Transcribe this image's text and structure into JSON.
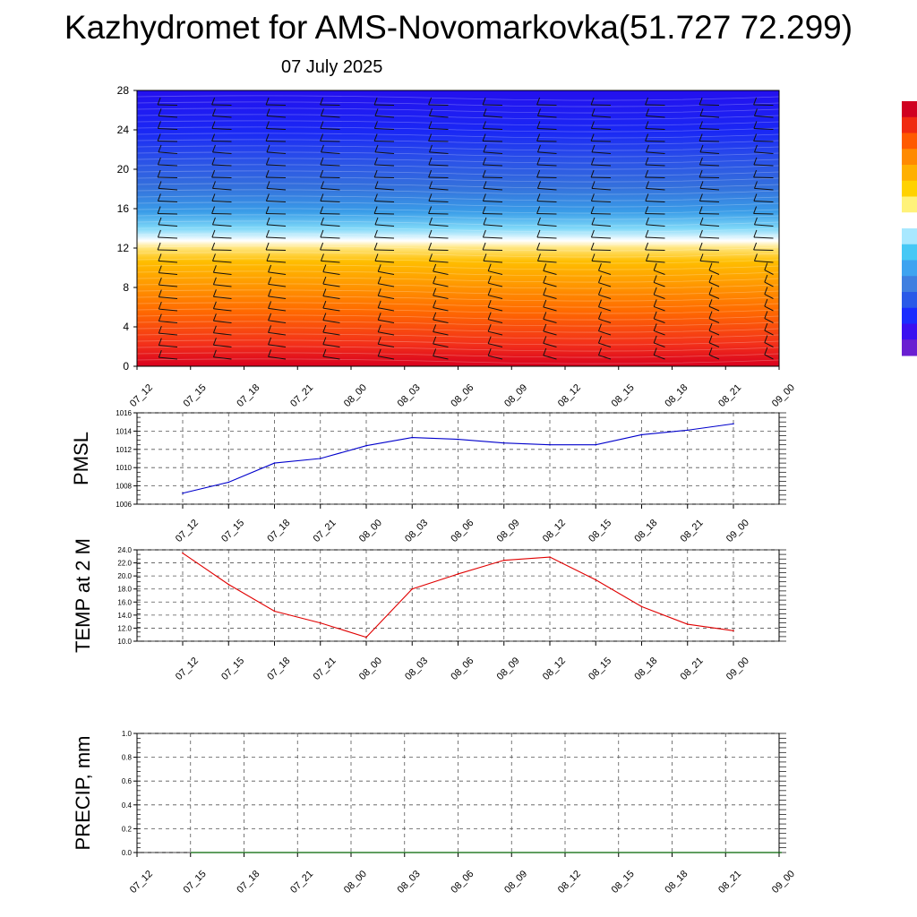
{
  "header": {
    "title": "Kazhydromet for AMS-Novomarkovka(51.727 72.299)",
    "date": "07 July 2025"
  },
  "chart_data": [
    {
      "type": "heatmap",
      "title": "Kazhydromet for AMS-Novomarkovka(51.727 72.299)",
      "subtitle": "07 July 2025",
      "x_ticks": [
        "07_12",
        "07_15",
        "07_18",
        "07_21",
        "08_00",
        "08_03",
        "08_06",
        "08_09",
        "08_12",
        "08_15",
        "08_18",
        "08_21",
        "09_00"
      ],
      "y_ticks": [
        0,
        4,
        8,
        12,
        16,
        20,
        24,
        28
      ],
      "ylim": [
        0,
        28
      ],
      "colorbar": [
        "#6a1fd1",
        "#3a10f0",
        "#1a2cff",
        "#2a5ae8",
        "#3f7fe0",
        "#3ea3f0",
        "#46c8f5",
        "#a8e8ff",
        "#ffffff",
        "#fff27a",
        "#ffd200",
        "#ffb000",
        "#ff8a00",
        "#ff5a00",
        "#f02a10",
        "#d00020"
      ],
      "overlay": "wind barbs"
    },
    {
      "type": "line",
      "ylabel": "PMSL",
      "x_ticks": [
        "07_12",
        "07_15",
        "07_18",
        "07_21",
        "08_00",
        "08_03",
        "08_06",
        "08_09",
        "08_12",
        "08_15",
        "08_18",
        "08_21",
        "09_00"
      ],
      "y_ticks": [
        "1006",
        "1008",
        "1010",
        "1012",
        "1014",
        "1016"
      ],
      "ylim": [
        1006,
        1016
      ],
      "color": "#0000cc",
      "values": [
        1007.2,
        1008.4,
        1010.5,
        1011.0,
        1012.4,
        1013.3,
        1013.1,
        1012.7,
        1012.5,
        1012.5,
        1013.6,
        1014.1,
        1014.8
      ]
    },
    {
      "type": "line",
      "ylabel": "TEMP at 2 M",
      "x_ticks": [
        "07_12",
        "07_15",
        "07_18",
        "07_21",
        "08_00",
        "08_03",
        "08_06",
        "08_09",
        "08_12",
        "08_15",
        "08_18",
        "08_21",
        "09_00"
      ],
      "y_ticks": [
        "10.0",
        "12.0",
        "14.0",
        "16.0",
        "18.0",
        "20.0",
        "22.0",
        "24.0"
      ],
      "ylim": [
        10,
        24
      ],
      "color": "#e00000",
      "values": [
        23.5,
        18.7,
        14.6,
        12.8,
        10.6,
        18.0,
        20.3,
        22.4,
        22.9,
        19.4,
        15.3,
        12.6,
        11.6
      ]
    },
    {
      "type": "line",
      "ylabel": "PRECIP, mm",
      "x_ticks": [
        "07_12",
        "07_15",
        "07_18",
        "07_21",
        "08_00",
        "08_03",
        "08_06",
        "08_09",
        "08_12",
        "08_15",
        "08_18",
        "08_21",
        "09_00"
      ],
      "y_ticks": [
        "0.0",
        "0.2",
        "0.4",
        "0.6",
        "0.8",
        "1.0"
      ],
      "ylim": [
        0,
        1
      ],
      "color": "#006400",
      "values": [
        0,
        0,
        0,
        0,
        0,
        0,
        0,
        0,
        0,
        0,
        0,
        0
      ]
    }
  ]
}
